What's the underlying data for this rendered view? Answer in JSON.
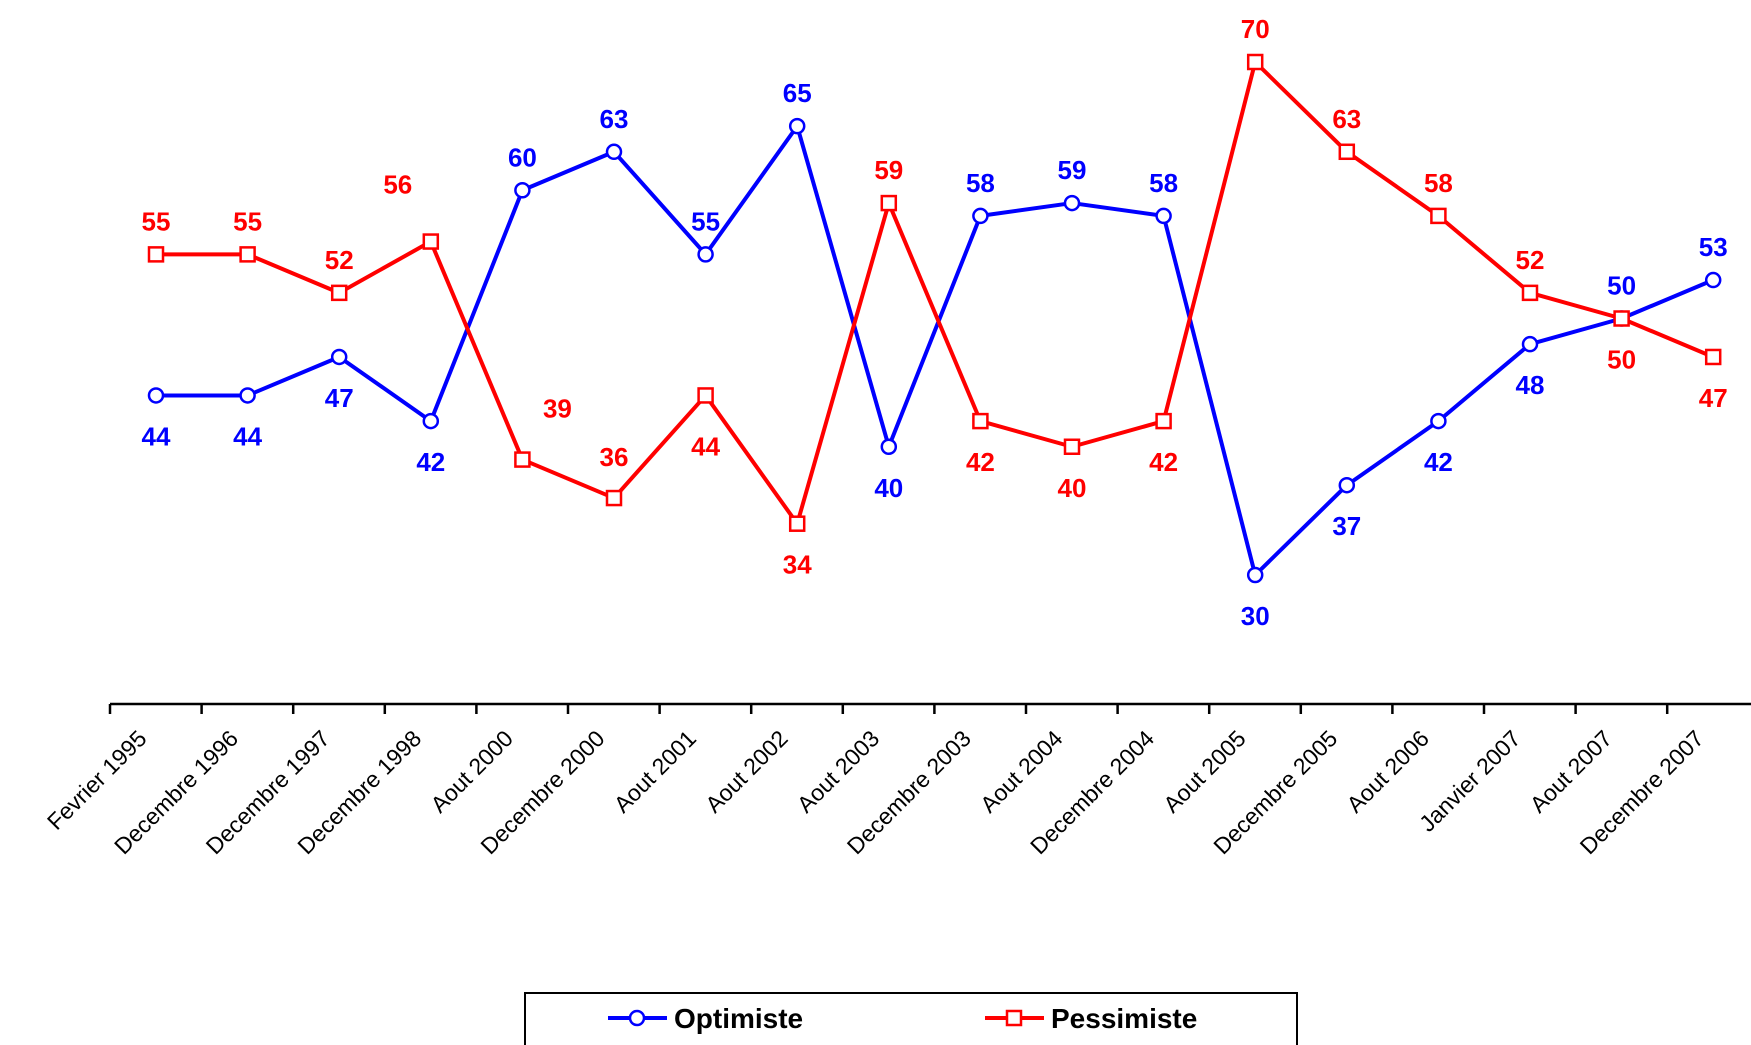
{
  "chart_data": {
    "type": "line",
    "categories": [
      "Fevrier 1995",
      "Decembre 1996",
      "Decembre 1997",
      "Decembre 1998",
      "Aout 2000",
      "Decembre 2000",
      "Aout 2001",
      "Aout 2002",
      "Aout 2003",
      "Decembre 2003",
      "Aout 2004",
      "Decembre 2004",
      "Aout 2005",
      "Decembre 2005",
      "Aout 2006",
      "Janvier 2007",
      "Aout 2007",
      "Decembre 2007"
    ],
    "series": [
      {
        "name": "Optimiste",
        "color": "#0000ff",
        "marker": "circle",
        "values": [
          44,
          44,
          47,
          42,
          60,
          63,
          55,
          65,
          40,
          58,
          59,
          58,
          30,
          37,
          42,
          48,
          50,
          53
        ]
      },
      {
        "name": "Pessimiste",
        "color": "#ff0000",
        "marker": "square",
        "values": [
          55,
          55,
          52,
          56,
          39,
          36,
          44,
          34,
          59,
          42,
          40,
          42,
          70,
          63,
          58,
          52,
          50,
          47
        ]
      }
    ],
    "ylim": [
      20,
      73
    ],
    "title": "",
    "xlabel": "",
    "ylabel": "",
    "legend": {
      "position": "bottom-center",
      "items": [
        "Optimiste",
        "Pessimiste"
      ]
    },
    "grid": false
  }
}
